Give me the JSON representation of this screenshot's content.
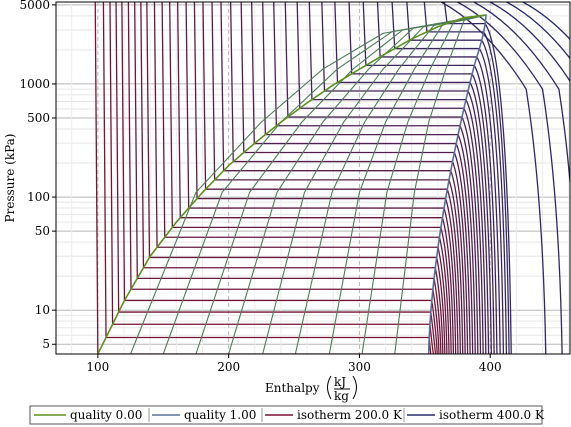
{
  "chart_data": {
    "type": "line",
    "title": "",
    "xlabel": "Enthalpy",
    "xlabel_unit_num": "kJ",
    "xlabel_unit_den": "kg",
    "ylabel": "Pressure (kPa)",
    "xlim": [
      68,
      461
    ],
    "ylim": [
      4.1,
      5300
    ],
    "yscale": "log",
    "grid": true,
    "xticks": [
      100,
      200,
      300,
      400
    ],
    "yticks": [
      5,
      10,
      50,
      100,
      500,
      1000,
      5000
    ],
    "legend_position": "bottom",
    "critical_point": {
      "h": 396,
      "p": 4050
    },
    "saturated_liquid_line": {
      "name": "quality 0.00",
      "color": "#5e8f1f",
      "points": [
        [
          100,
          4.1
        ],
        [
          120,
          12
        ],
        [
          140,
          30
        ],
        [
          160,
          60
        ],
        [
          180,
          110
        ],
        [
          200,
          190
        ],
        [
          220,
          300
        ],
        [
          240,
          460
        ],
        [
          260,
          680
        ],
        [
          280,
          980
        ],
        [
          300,
          1350
        ],
        [
          320,
          1850
        ],
        [
          340,
          2500
        ],
        [
          360,
          3200
        ],
        [
          380,
          3850
        ],
        [
          396,
          4050
        ]
      ]
    },
    "saturated_vapor_line": {
      "name": "quality 1.00",
      "color": "#5b6e9a",
      "points": [
        [
          353,
          4.1
        ],
        [
          358,
          9
        ],
        [
          365,
          22
        ],
        [
          372,
          50
        ],
        [
          377,
          95
        ],
        [
          382,
          190
        ],
        [
          386,
          400
        ],
        [
          389,
          800
        ],
        [
          392,
          1500
        ],
        [
          396,
          2500
        ],
        [
          402,
          3300
        ],
        [
          410,
          3900
        ],
        [
          396,
          4050
        ]
      ]
    },
    "quality_lines": [
      {
        "quality": 0.1,
        "points": [
          [
            125,
            4.1
          ],
          [
            175,
            110
          ],
          [
            225,
            460
          ],
          [
            272,
            1350
          ],
          [
            318,
            2800
          ],
          [
            396,
            4050
          ]
        ]
      },
      {
        "quality": 0.2,
        "points": [
          [
            150,
            4.1
          ],
          [
            195,
            110
          ],
          [
            240,
            460
          ],
          [
            283,
            1350
          ],
          [
            325,
            2900
          ],
          [
            396,
            4050
          ]
        ]
      },
      {
        "quality": 0.3,
        "points": [
          [
            175,
            4.1
          ],
          [
            216,
            110
          ],
          [
            256,
            460
          ],
          [
            295,
            1350
          ],
          [
            333,
            3000
          ],
          [
            396,
            4050
          ]
        ]
      },
      {
        "quality": 0.4,
        "points": [
          [
            200,
            4.1
          ],
          [
            237,
            110
          ],
          [
            272,
            460
          ],
          [
            307,
            1350
          ],
          [
            341,
            3100
          ],
          [
            396,
            4050
          ]
        ]
      },
      {
        "quality": 0.5,
        "points": [
          [
            226,
            4.1
          ],
          [
            258,
            110
          ],
          [
            288,
            460
          ],
          [
            318,
            1350
          ],
          [
            349,
            3200
          ],
          [
            396,
            4050
          ]
        ]
      },
      {
        "quality": 0.6,
        "points": [
          [
            251,
            4.1
          ],
          [
            279,
            110
          ],
          [
            304,
            460
          ],
          [
            330,
            1350
          ],
          [
            357,
            3300
          ],
          [
            396,
            4050
          ]
        ]
      },
      {
        "quality": 0.7,
        "points": [
          [
            277,
            4.1
          ],
          [
            300,
            110
          ],
          [
            320,
            460
          ],
          [
            342,
            1350
          ],
          [
            364,
            3400
          ],
          [
            396,
            4050
          ]
        ]
      },
      {
        "quality": 0.8,
        "points": [
          [
            302,
            4.1
          ],
          [
            321,
            110
          ],
          [
            337,
            460
          ],
          [
            354,
            1350
          ],
          [
            372,
            3500
          ],
          [
            396,
            4050
          ]
        ]
      },
      {
        "quality": 0.9,
        "points": [
          [
            327,
            4.1
          ],
          [
            342,
            110
          ],
          [
            353,
            460
          ],
          [
            366,
            1350
          ],
          [
            380,
            3650
          ],
          [
            396,
            4050
          ]
        ]
      }
    ],
    "isotherms": {
      "name_first": "isotherm 200.0 K",
      "name_last": "isotherm 400.0 K",
      "color_first": "#7a1230",
      "color_last": "#262a6e",
      "count": 41
    },
    "legend": [
      "quality 0.00",
      "quality 1.00",
      "isotherm 200.0 K",
      "isotherm 400.0 K"
    ]
  }
}
